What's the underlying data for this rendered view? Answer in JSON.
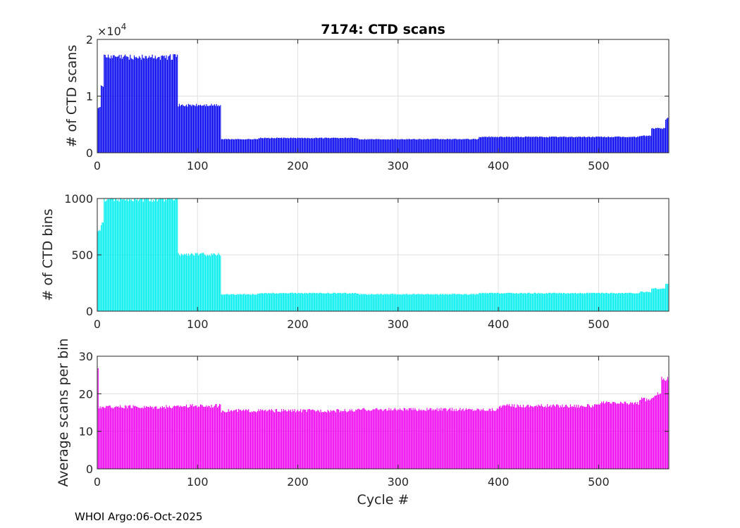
{
  "footer": "WHOI Argo:06-Oct-2025",
  "chart_data": [
    {
      "type": "bar",
      "title": "7174: CTD scans",
      "xlabel": "",
      "ylabel": "# of CTD scans",
      "multiplier_label": "×10",
      "multiplier_exponent": "4",
      "xlim": [
        0,
        570
      ],
      "ylim": [
        0,
        20000
      ],
      "xticks": [
        0,
        100,
        200,
        300,
        400,
        500
      ],
      "yticks": [
        0,
        10000,
        20000
      ],
      "ytick_labels": [
        "0",
        "1",
        "2"
      ],
      "grid": true,
      "color": "#0000ee",
      "segments": [
        {
          "x_start": 1,
          "x_end": 3,
          "value": 8000
        },
        {
          "x_start": 4,
          "x_end": 6,
          "value": 12000
        },
        {
          "x_start": 7,
          "x_end": 80,
          "value": 16900
        },
        {
          "x_start": 81,
          "x_end": 123,
          "value": 8400
        },
        {
          "x_start": 124,
          "x_end": 160,
          "value": 2400
        },
        {
          "x_start": 161,
          "x_end": 260,
          "value": 2600
        },
        {
          "x_start": 261,
          "x_end": 380,
          "value": 2400
        },
        {
          "x_start": 381,
          "x_end": 540,
          "value": 2800
        },
        {
          "x_start": 541,
          "x_end": 552,
          "value": 3000
        },
        {
          "x_start": 553,
          "x_end": 566,
          "value": 4300
        },
        {
          "x_start": 567,
          "x_end": 570,
          "value": 6000
        }
      ]
    },
    {
      "type": "bar",
      "title": "",
      "xlabel": "",
      "ylabel": "# of CTD bins",
      "xlim": [
        0,
        570
      ],
      "ylim": [
        0,
        1000
      ],
      "xticks": [
        0,
        100,
        200,
        300,
        400,
        500
      ],
      "yticks": [
        0,
        500,
        1000
      ],
      "ytick_labels": [
        "0",
        "500",
        "1000"
      ],
      "grid": true,
      "color": "#00eeee",
      "segments": [
        {
          "x_start": 1,
          "x_end": 3,
          "value": 720
        },
        {
          "x_start": 4,
          "x_end": 6,
          "value": 780
        },
        {
          "x_start": 7,
          "x_end": 80,
          "value": 1000
        },
        {
          "x_start": 81,
          "x_end": 123,
          "value": 505
        },
        {
          "x_start": 124,
          "x_end": 160,
          "value": 150
        },
        {
          "x_start": 161,
          "x_end": 260,
          "value": 160
        },
        {
          "x_start": 261,
          "x_end": 380,
          "value": 150
        },
        {
          "x_start": 381,
          "x_end": 540,
          "value": 160
        },
        {
          "x_start": 541,
          "x_end": 552,
          "value": 170
        },
        {
          "x_start": 553,
          "x_end": 566,
          "value": 200
        },
        {
          "x_start": 567,
          "x_end": 570,
          "value": 240
        }
      ]
    },
    {
      "type": "bar",
      "title": "",
      "xlabel": "Cycle #",
      "ylabel": "Average scans per bin",
      "xlim": [
        0,
        570
      ],
      "ylim": [
        0,
        30
      ],
      "xticks": [
        0,
        100,
        200,
        300,
        400,
        500
      ],
      "yticks": [
        0,
        10,
        20,
        30
      ],
      "ytick_labels": [
        "0",
        "10",
        "20",
        "30"
      ],
      "grid": true,
      "color": "#ee00ee",
      "segments": [
        {
          "x_start": 1,
          "x_end": 1,
          "value": 26.5
        },
        {
          "x_start": 2,
          "x_end": 80,
          "value": 16.5
        },
        {
          "x_start": 81,
          "x_end": 123,
          "value": 16.8
        },
        {
          "x_start": 124,
          "x_end": 260,
          "value": 15.5
        },
        {
          "x_start": 261,
          "x_end": 400,
          "value": 15.8
        },
        {
          "x_start": 401,
          "x_end": 500,
          "value": 16.8
        },
        {
          "x_start": 501,
          "x_end": 540,
          "value": 17.5
        },
        {
          "x_start": 541,
          "x_end": 555,
          "value": 18.5
        },
        {
          "x_start": 556,
          "x_end": 562,
          "value": 20
        },
        {
          "x_start": 563,
          "x_end": 570,
          "value": 24
        }
      ]
    }
  ]
}
